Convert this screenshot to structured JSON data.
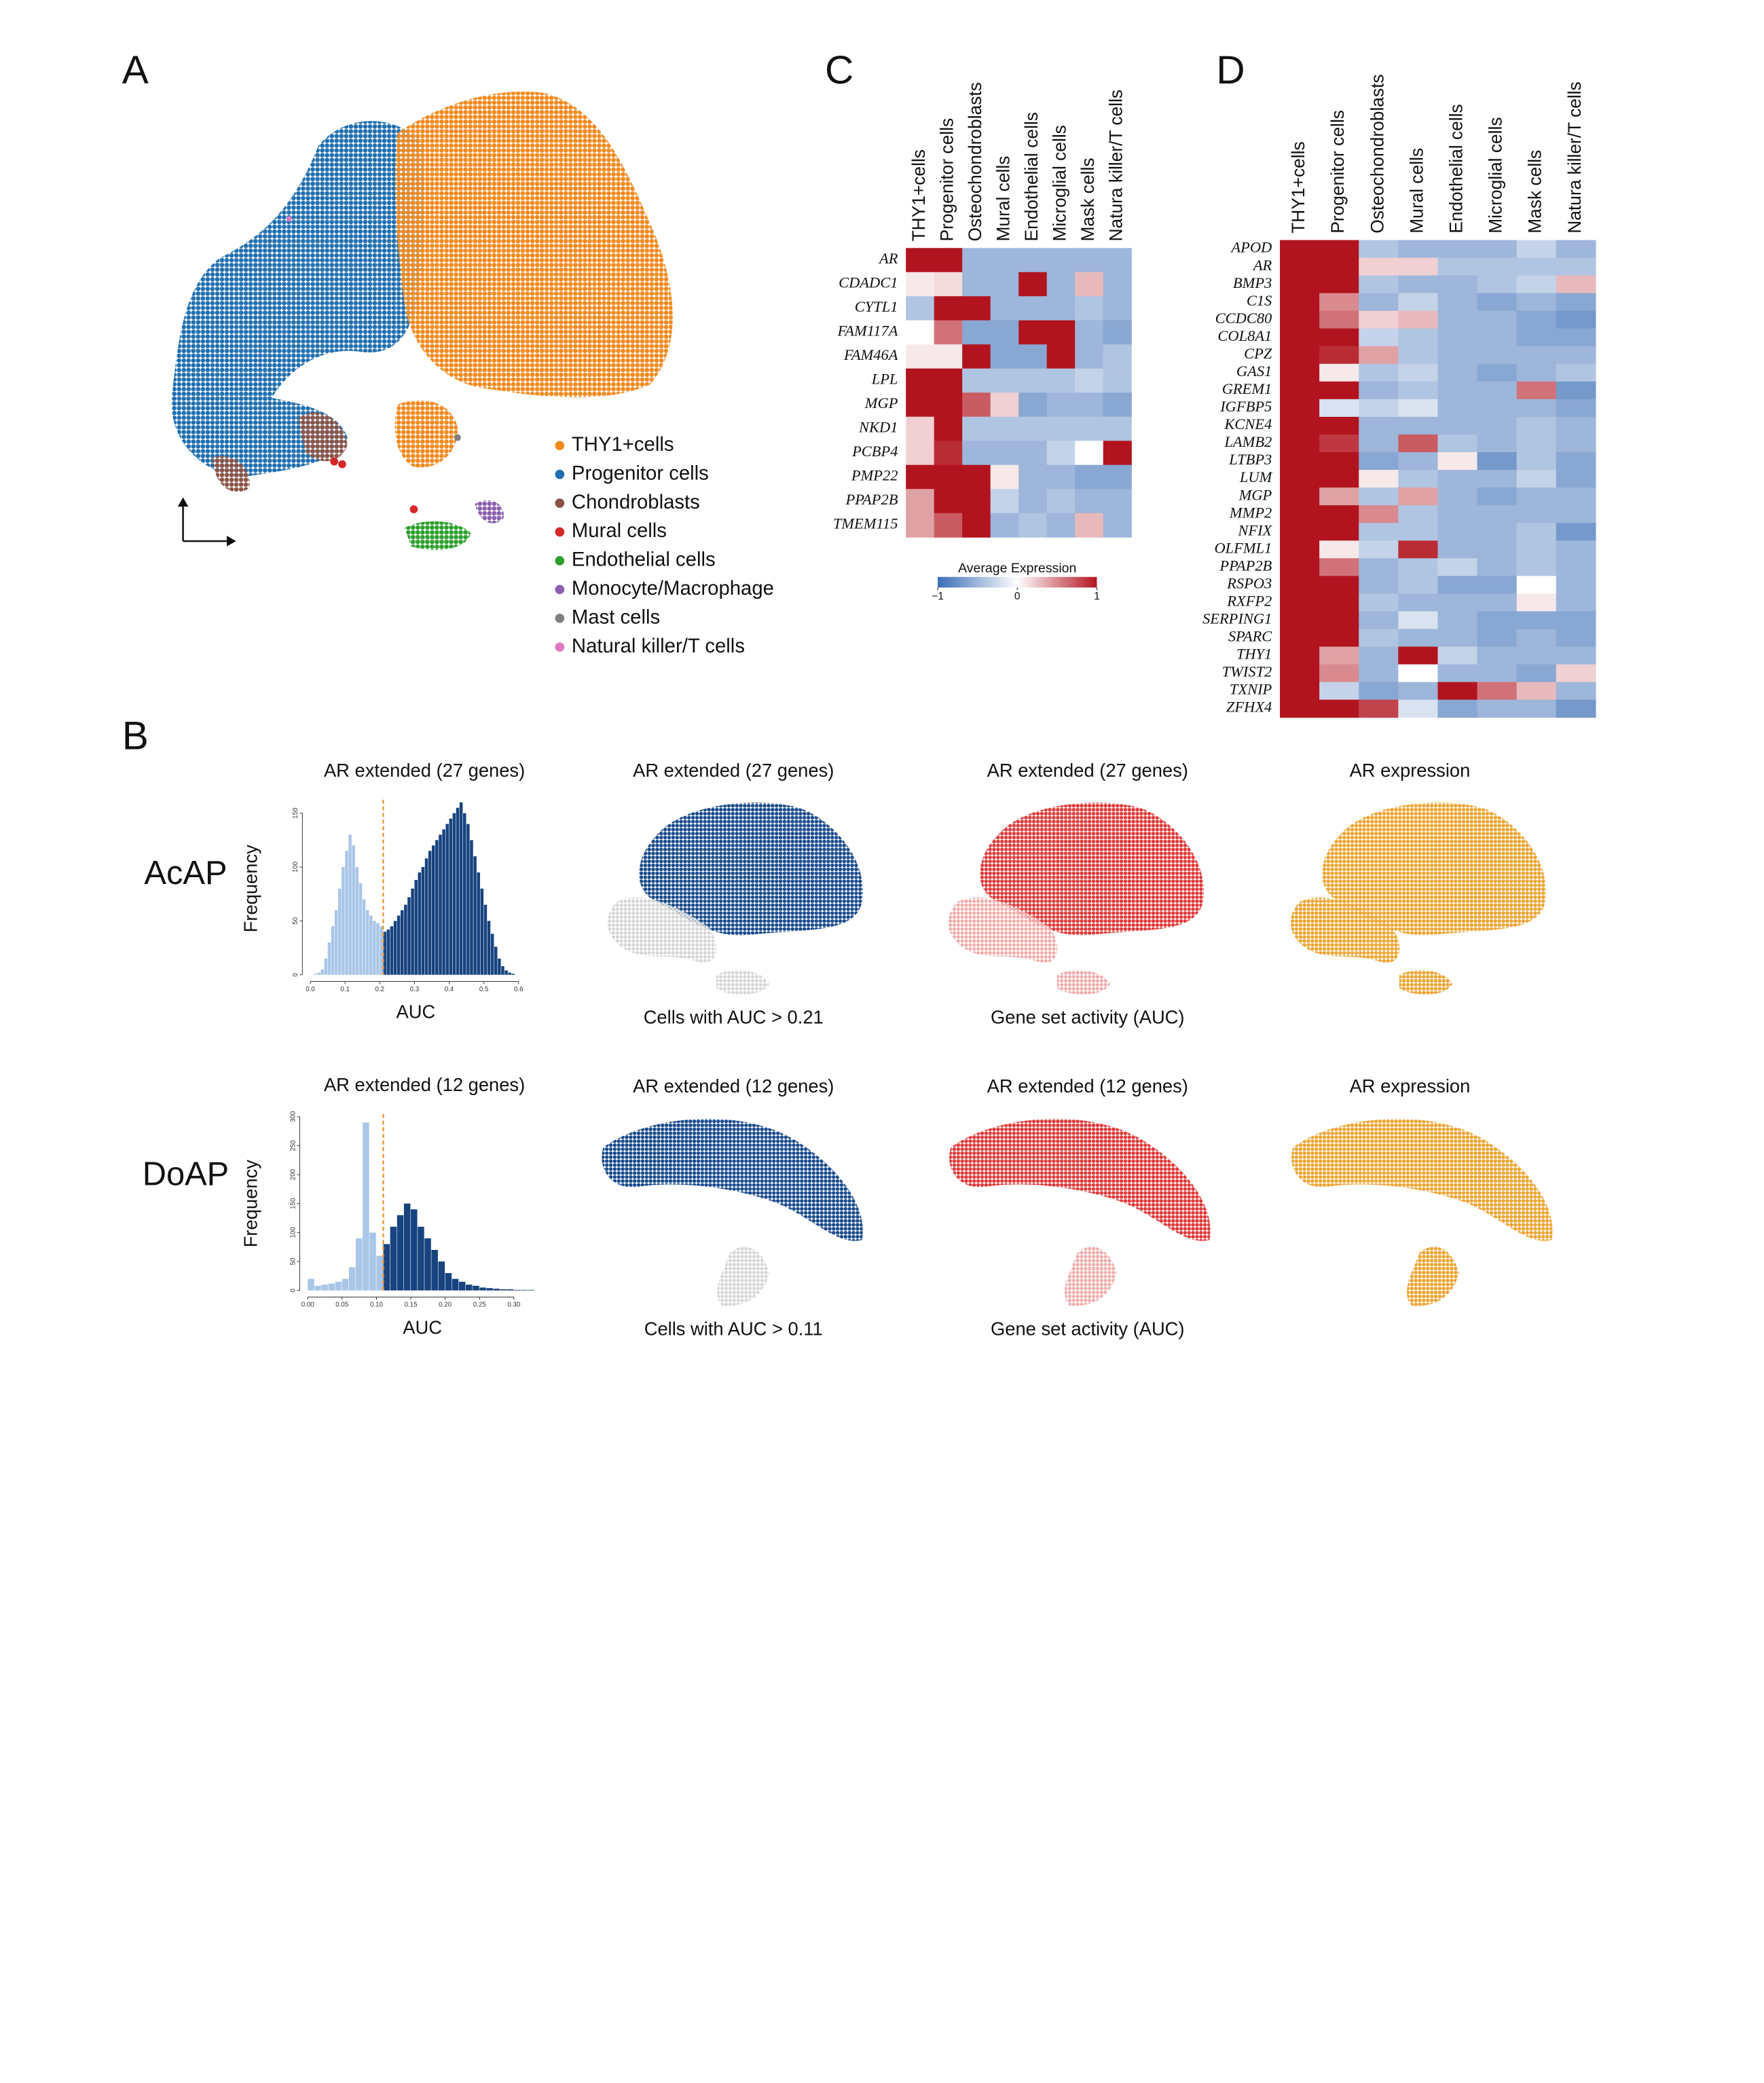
{
  "figure": {
    "panels": [
      "A",
      "B",
      "C",
      "D"
    ],
    "a_legend": [
      {
        "name": "THY1+cells",
        "color": "#f28a1e"
      },
      {
        "name": "Progenitor cells",
        "color": "#1f6fb0"
      },
      {
        "name": "Chondroblasts",
        "color": "#8b5347"
      },
      {
        "name": "Mural cells",
        "color": "#d62728"
      },
      {
        "name": "Endothelial cells",
        "color": "#2ca02c"
      },
      {
        "name": "Monocyte/Macrophage",
        "color": "#8c5fb0"
      },
      {
        "name": "Mast cells",
        "color": "#7f7f7f"
      },
      {
        "name": "Natural killer/T cells",
        "color": "#e377c2"
      }
    ],
    "b_rows": [
      {
        "label": "AcAP",
        "maps": [
          {
            "title": "AR extended (27  genes)",
            "caption": "Cells with AUC > 0.21"
          },
          {
            "title": "AR extended (27  genes)",
            "caption": "Gene set activity (AUC)"
          },
          {
            "title": "AR expression"
          }
        ]
      },
      {
        "label": "DoAP",
        "maps": [
          {
            "title": "AR extended (12  genes)",
            "caption": "Cells with AUC > 0.11"
          },
          {
            "title": "AR extended (12  genes)",
            "caption": "Gene set activity (AUC)"
          },
          {
            "title": "AR expression"
          }
        ]
      }
    ]
  },
  "chart_data": [
    {
      "type": "heatmap",
      "categories": [
        "THY1+cells",
        "Progenitor cells",
        "Osteochondroblasts",
        "Mural cells",
        "Endothelial cells",
        "Microglial cells",
        "Mask cells",
        "Natura killer/T cells"
      ],
      "rows": [
        "AR",
        "CDADC1",
        "CYTL1",
        "FAM117A",
        "FAM46A",
        "LPL",
        "MGP",
        "NKD1",
        "PCBP4",
        "PMP22",
        "PPAP2B",
        "TMEM115"
      ],
      "values": [
        [
          1,
          1,
          -0.5,
          -0.5,
          -0.5,
          -0.5,
          -0.5,
          -0.5
        ],
        [
          0.1,
          0.15,
          -0.5,
          -0.5,
          1,
          -0.5,
          0.3,
          -0.5
        ],
        [
          -0.4,
          1,
          1,
          -0.5,
          -0.5,
          -0.5,
          -0.4,
          -0.5
        ],
        [
          0,
          0.6,
          -0.6,
          -0.6,
          1,
          1,
          -0.5,
          -0.6
        ],
        [
          0.1,
          0.1,
          1,
          -0.6,
          -0.6,
          1,
          -0.5,
          -0.4
        ],
        [
          1,
          1,
          -0.4,
          -0.4,
          -0.4,
          -0.4,
          -0.3,
          -0.4
        ],
        [
          1,
          1,
          0.7,
          0.2,
          -0.6,
          -0.5,
          -0.5,
          -0.6
        ],
        [
          0.2,
          1,
          -0.4,
          -0.4,
          -0.4,
          -0.4,
          -0.4,
          -0.4
        ],
        [
          0.2,
          0.9,
          -0.5,
          -0.5,
          -0.5,
          -0.3,
          0,
          1
        ],
        [
          1,
          1,
          1,
          0.1,
          -0.5,
          -0.5,
          -0.6,
          -0.6
        ],
        [
          0.4,
          1,
          1,
          -0.3,
          -0.5,
          -0.4,
          -0.5,
          -0.5
        ],
        [
          0.4,
          0.7,
          1,
          -0.5,
          -0.4,
          -0.5,
          0.3,
          -0.5
        ]
      ],
      "colors": [
        "#3a6db5",
        "#ffffff",
        "#b2141f"
      ],
      "highlight_rows": [
        0
      ],
      "highlight_color": "#d42a2a",
      "legend_title": "Average Expression",
      "legend_ticks": [
        {
          "value": -1,
          "label": "−1"
        },
        0,
        1
      ]
    },
    {
      "type": "heatmap",
      "categories": [
        "THY1+cells",
        "Progenitor cells",
        "Osteochondroblasts",
        "Mural cells",
        "Endothelial cells",
        "Microglial cells",
        "Mask cells",
        "Natura killer/T cells"
      ],
      "rows": [
        "APOD",
        "AR",
        "BMP3",
        "C1S",
        "CCDC80",
        "COL8A1",
        "CPZ",
        "GAS1",
        "GREM1",
        "IGFBP5",
        "KCNE4",
        "LAMB2",
        "LTBP3",
        "LUM",
        "MGP",
        "MMP2",
        "NFIX",
        "OLFML1",
        "PPAP2B",
        "RSPO3",
        "RXFP2",
        "SERPING1",
        "SPARC",
        "THY1",
        "TWIST2",
        "TXNIP",
        "ZFHX4"
      ],
      "values": [
        [
          1,
          1,
          -0.4,
          -0.5,
          -0.5,
          -0.5,
          -0.3,
          -0.5
        ],
        [
          1,
          1,
          0.2,
          0.2,
          -0.4,
          -0.4,
          -0.4,
          -0.4
        ],
        [
          1,
          1,
          -0.4,
          -0.5,
          -0.5,
          -0.4,
          -0.3,
          0.3
        ],
        [
          1,
          0.5,
          -0.5,
          -0.3,
          -0.5,
          -0.6,
          -0.5,
          -0.6
        ],
        [
          1,
          0.6,
          0.2,
          0.3,
          -0.5,
          -0.5,
          -0.6,
          -0.7
        ],
        [
          1,
          1,
          -0.3,
          -0.4,
          -0.5,
          -0.5,
          -0.6,
          -0.6
        ],
        [
          1,
          0.9,
          0.4,
          -0.4,
          -0.5,
          -0.5,
          -0.5,
          -0.5
        ],
        [
          1,
          0.1,
          -0.4,
          -0.3,
          -0.5,
          -0.6,
          -0.5,
          -0.4
        ],
        [
          1,
          1,
          -0.5,
          -0.4,
          -0.5,
          -0.5,
          0.6,
          -0.7
        ],
        [
          1,
          -0.2,
          -0.3,
          -0.2,
          -0.5,
          -0.5,
          -0.5,
          -0.6
        ],
        [
          1,
          1,
          -0.5,
          -0.5,
          -0.5,
          -0.5,
          -0.4,
          -0.5
        ],
        [
          1,
          0.85,
          -0.5,
          0.7,
          -0.4,
          -0.5,
          -0.4,
          -0.5
        ],
        [
          1,
          1,
          -0.6,
          -0.5,
          0.1,
          -0.7,
          -0.4,
          -0.6
        ],
        [
          1,
          1,
          0.1,
          -0.4,
          -0.5,
          -0.5,
          -0.3,
          -0.6
        ],
        [
          1,
          0.4,
          -0.4,
          0.4,
          -0.5,
          -0.6,
          -0.5,
          -0.5
        ],
        [
          1,
          1,
          0.5,
          -0.4,
          -0.5,
          -0.5,
          -0.5,
          -0.5
        ],
        [
          1,
          1,
          -0.4,
          -0.4,
          -0.5,
          -0.5,
          -0.4,
          -0.7
        ],
        [
          1,
          0.1,
          -0.3,
          0.9,
          -0.5,
          -0.5,
          -0.4,
          -0.5
        ],
        [
          1,
          0.6,
          -0.5,
          -0.4,
          -0.3,
          -0.5,
          -0.4,
          -0.5
        ],
        [
          1,
          1,
          -0.5,
          -0.4,
          -0.6,
          -0.6,
          0,
          -0.5
        ],
        [
          1,
          1,
          -0.4,
          -0.5,
          -0.5,
          -0.5,
          0.1,
          -0.5
        ],
        [
          1,
          1,
          -0.5,
          -0.2,
          -0.5,
          -0.6,
          -0.6,
          -0.6
        ],
        [
          1,
          1,
          -0.4,
          -0.5,
          -0.5,
          -0.6,
          -0.5,
          -0.6
        ],
        [
          1,
          0.4,
          -0.5,
          1,
          -0.3,
          -0.5,
          -0.5,
          -0.5
        ],
        [
          1,
          0.5,
          -0.5,
          0,
          -0.5,
          -0.5,
          -0.6,
          0.2
        ],
        [
          1,
          -0.3,
          -0.6,
          -0.5,
          1,
          0.6,
          0.3,
          -0.5
        ],
        [
          1,
          1,
          0.8,
          -0.2,
          -0.6,
          -0.5,
          -0.5,
          -0.7
        ]
      ],
      "colors": [
        "#3a6db5",
        "#ffffff",
        "#b2141f"
      ],
      "highlight_rows": [
        1,
        20
      ],
      "highlight_color": "#d42a2a"
    },
    {
      "type": "histogram",
      "title": "AR extended (27  genes)",
      "xlabel": "AUC",
      "ylabel": "Frequency",
      "bins": [
        0,
        0.01,
        0.02,
        0.03,
        0.04,
        0.05,
        0.06,
        0.07,
        0.08,
        0.09,
        0.1,
        0.11,
        0.12,
        0.13,
        0.14,
        0.15,
        0.16,
        0.17,
        0.18,
        0.19,
        0.2,
        0.21,
        0.22,
        0.23,
        0.24,
        0.25,
        0.26,
        0.27,
        0.28,
        0.29,
        0.3,
        0.31,
        0.32,
        0.33,
        0.34,
        0.35,
        0.36,
        0.37,
        0.38,
        0.39,
        0.4,
        0.41,
        0.42,
        0.43,
        0.44,
        0.45,
        0.46,
        0.47,
        0.48,
        0.49,
        0.5,
        0.51,
        0.52,
        0.53,
        0.54,
        0.55,
        0.56,
        0.57,
        0.58,
        0.59,
        0.6
      ],
      "values": [
        0,
        1,
        2,
        5,
        15,
        30,
        45,
        60,
        80,
        100,
        115,
        130,
        120,
        100,
        85,
        70,
        60,
        55,
        50,
        48,
        45,
        40,
        42,
        45,
        50,
        55,
        60,
        65,
        72,
        80,
        88,
        95,
        100,
        108,
        115,
        120,
        125,
        130,
        135,
        140,
        145,
        150,
        155,
        160,
        150,
        140,
        125,
        110,
        95,
        80,
        65,
        50,
        38,
        26,
        15,
        8,
        4,
        2,
        1,
        0
      ],
      "threshold": 0.21,
      "colors": [
        "#a9c6e8",
        "#17437f"
      ],
      "threshold_color": "#e8953a",
      "xlim": [
        0,
        0.6
      ],
      "ylim": [
        0,
        160
      ],
      "xticks": [
        {
          "value": 0,
          "label": "0.0"
        },
        0.1,
        0.2,
        0.3,
        0.4,
        0.5,
        0.6
      ],
      "yticks": [
        0,
        50,
        100,
        150
      ]
    },
    {
      "type": "histogram",
      "title": "AR extended (12  genes)",
      "xlabel": "AUC",
      "ylabel": "Frequency",
      "bins": [
        0,
        0.01,
        0.02,
        0.03,
        0.04,
        0.05,
        0.06,
        0.07,
        0.08,
        0.09,
        0.1,
        0.11,
        0.12,
        0.13,
        0.14,
        0.15,
        0.16,
        0.17,
        0.18,
        0.19,
        0.2,
        0.21,
        0.22,
        0.23,
        0.24,
        0.25,
        0.26,
        0.27,
        0.28,
        0.29,
        0.3,
        0.31,
        0.32,
        0.33
      ],
      "values": [
        20,
        8,
        10,
        12,
        15,
        20,
        40,
        90,
        290,
        100,
        60,
        80,
        110,
        130,
        150,
        140,
        110,
        90,
        70,
        50,
        30,
        20,
        15,
        10,
        8,
        5,
        4,
        3,
        2,
        2,
        1,
        1,
        1
      ],
      "threshold": 0.11,
      "colors": [
        "#a9c6e8",
        "#17437f"
      ],
      "threshold_color": "#e8953a",
      "xlim": [
        0,
        0.33
      ],
      "ylim": [
        0,
        300
      ],
      "xticks": [
        {
          "value": 0,
          "label": "0.00"
        },
        0.05,
        {
          "value": 0.1,
          "label": "0.10"
        },
        0.15,
        {
          "value": 0.2,
          "label": "0.20"
        },
        0.25,
        {
          "value": 0.3,
          "label": "0.30"
        }
      ],
      "yticks": [
        0,
        50,
        100,
        150,
        200,
        250,
        300
      ]
    }
  ]
}
